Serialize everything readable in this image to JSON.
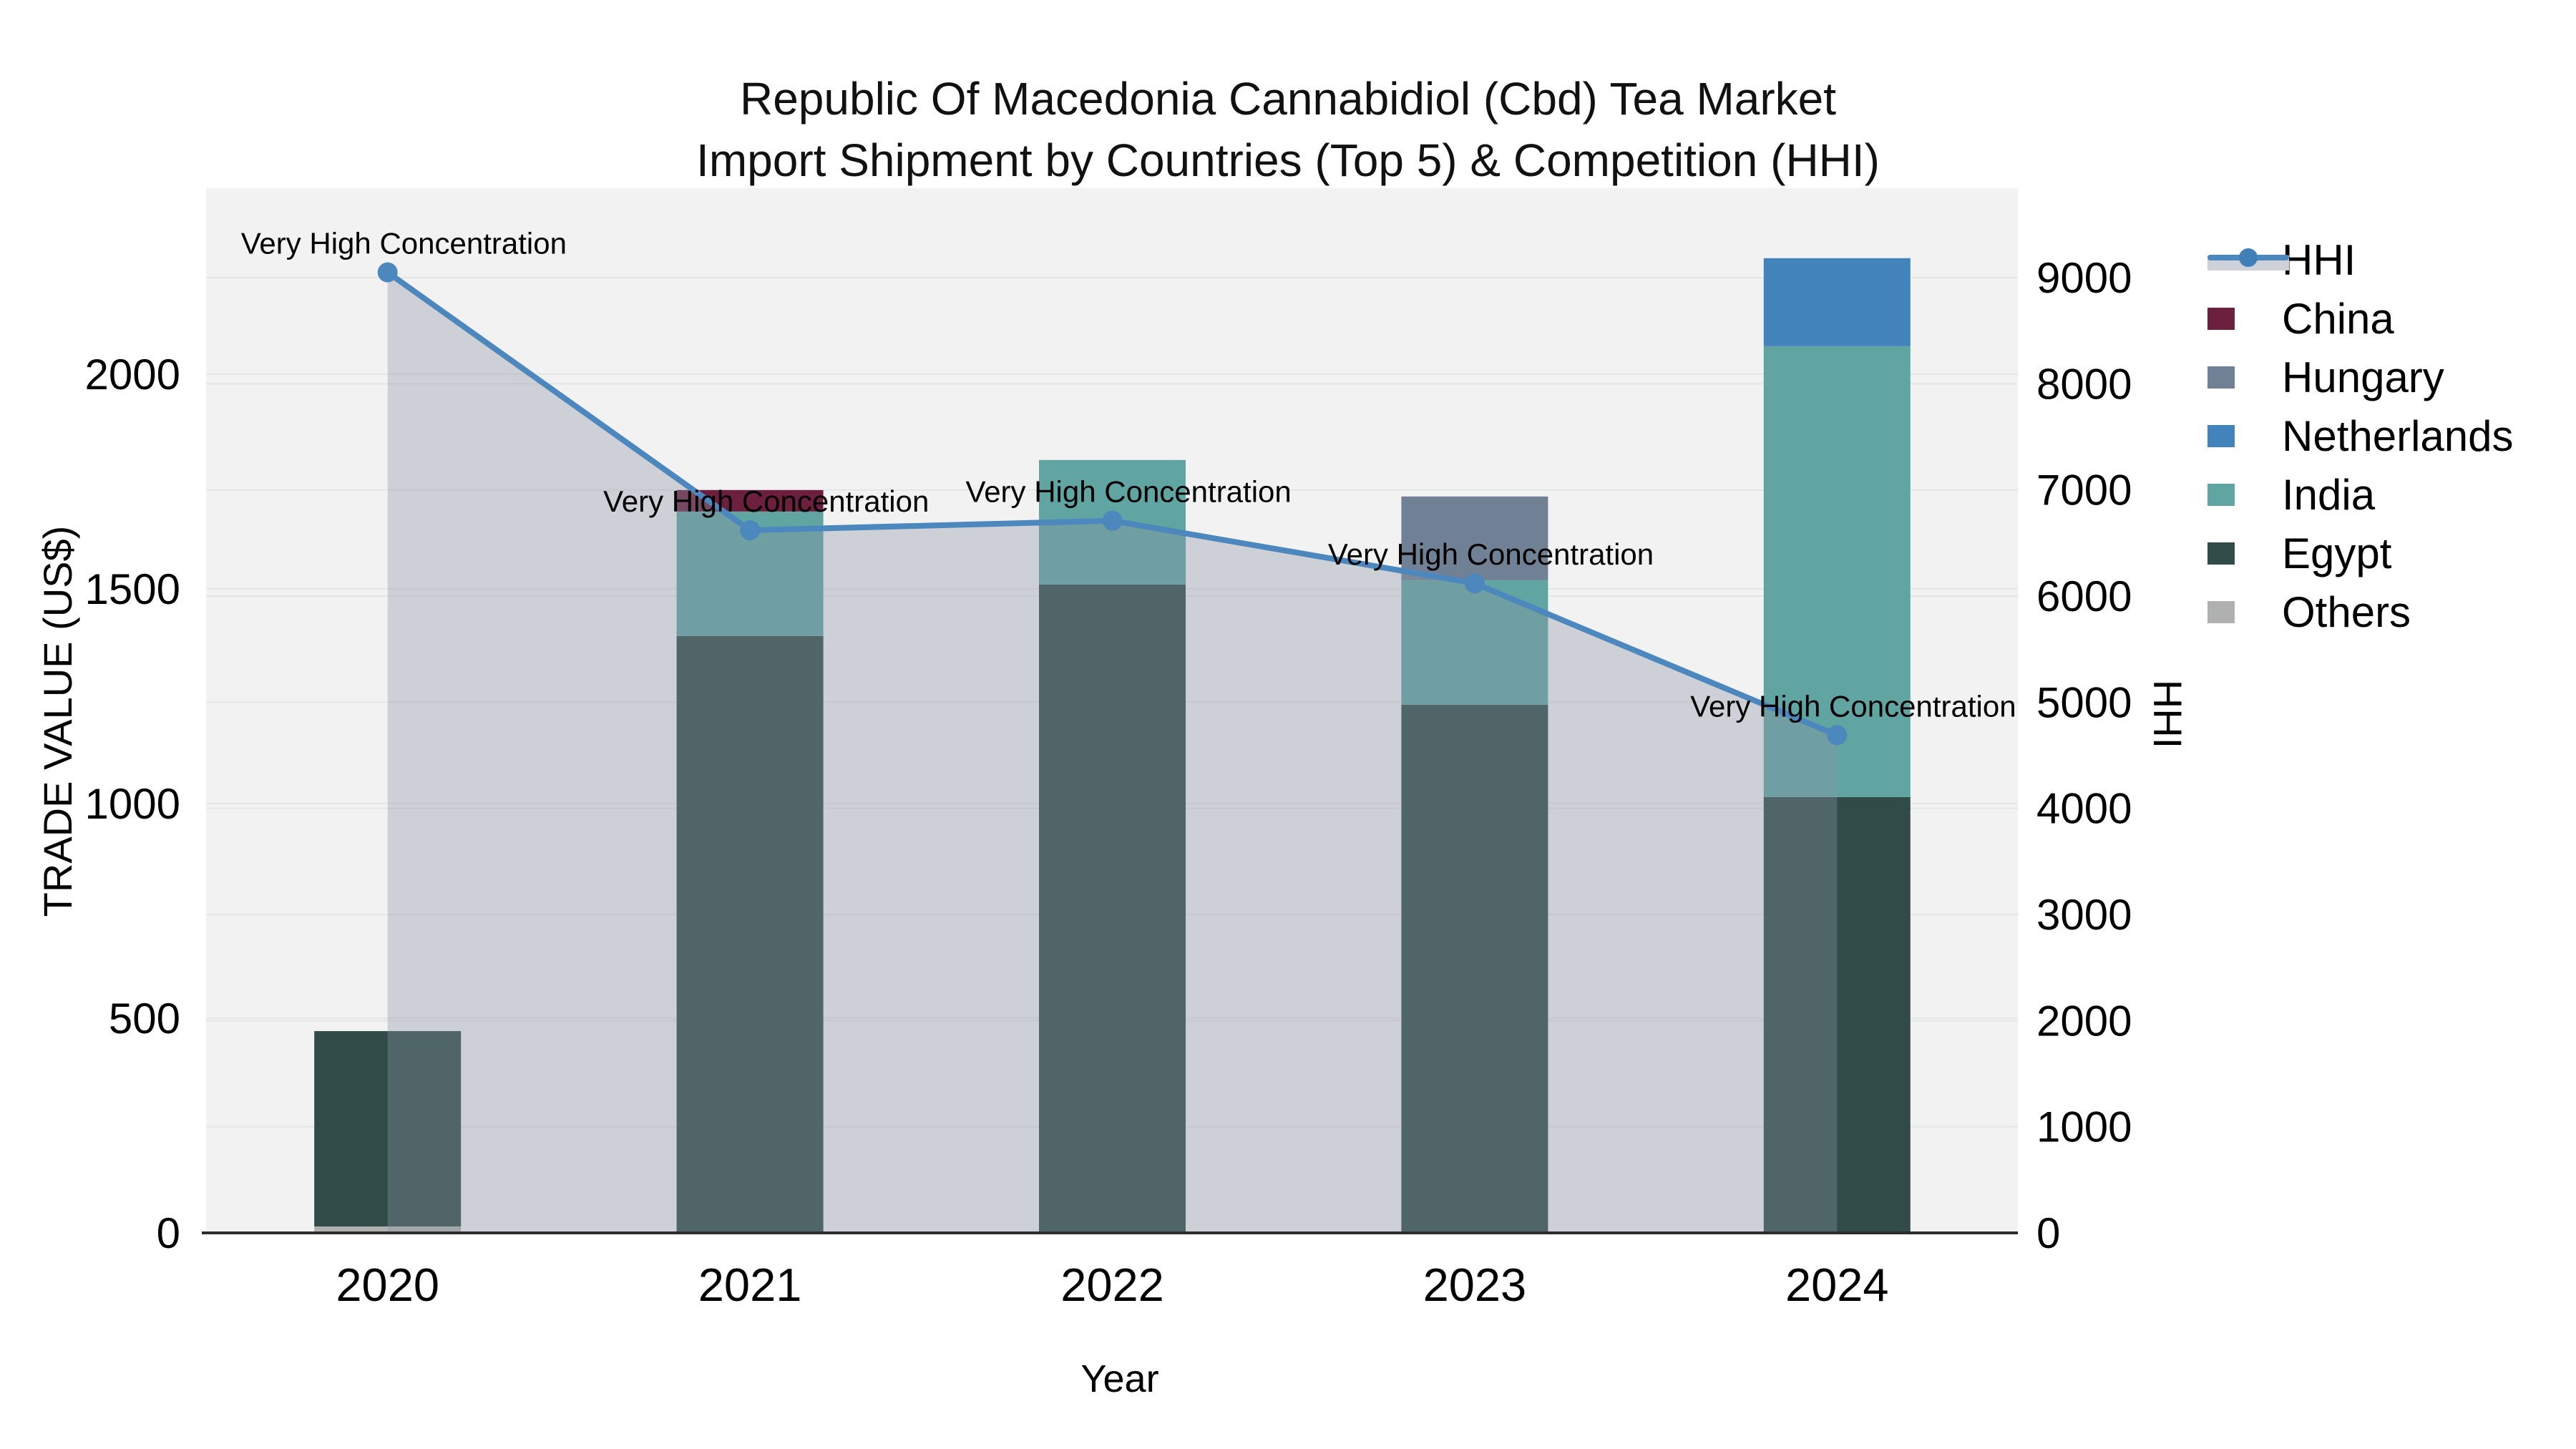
{
  "title": {
    "line1": "Republic Of Macedonia Cannabidiol (Cbd) Tea Market",
    "line2": "Import Shipment by Countries (Top 5) & Competition (HHI)"
  },
  "left_axis": {
    "label": "TRADE VALUE (US$)",
    "tick_values": [
      0,
      500,
      1000,
      1500,
      2000
    ]
  },
  "right_axis": {
    "label": "HHI",
    "tick_values": [
      0,
      1000,
      2000,
      3000,
      4000,
      5000,
      6000,
      7000,
      8000,
      9000
    ]
  },
  "x_axis": {
    "label": "Year"
  },
  "legend": {
    "items": [
      {
        "label": "HHI",
        "type": "line"
      },
      {
        "label": "China",
        "type": "patch"
      },
      {
        "label": "Hungary",
        "type": "patch"
      },
      {
        "label": "Netherlands",
        "type": "patch"
      },
      {
        "label": "India",
        "type": "patch"
      },
      {
        "label": "Egypt",
        "type": "patch"
      },
      {
        "label": "Others",
        "type": "patch"
      }
    ]
  },
  "colors": {
    "hhi_line": "#4c87bd",
    "area_fill": "rgba(138,148,166,0.35)",
    "plot_background": "#f2f2f2",
    "gridline": "#e4e6e6",
    "axis_line": "#2d2d2d",
    "China": "#6d1f3e",
    "Hungary": "#708195",
    "Netherlands": "#4283bb",
    "India": "#61a5a2",
    "Egypt": "#314c48",
    "Others": "#afb1b0"
  },
  "chart_data": {
    "type": "bar+line",
    "title": "Republic Of Macedonia Cannabidiol (Cbd) Tea Market Import Shipment by Countries (Top 5) & Competition (HHI)",
    "categories": [
      "2020",
      "2021",
      "2022",
      "2023",
      "2024"
    ],
    "xlabel": "Year",
    "ylabel_left": "TRADE VALUE (US$)",
    "ylabel_right": "HHI",
    "left_ylim": [
      0,
      2433
    ],
    "right_ylim": [
      0,
      9843
    ],
    "grid": true,
    "legend_position": "right",
    "series": [
      {
        "name": "Others",
        "values": [
          15,
          0,
          0,
          0,
          0
        ]
      },
      {
        "name": "Egypt",
        "values": [
          455,
          1390,
          1510,
          1230,
          1015
        ]
      },
      {
        "name": "India",
        "values": [
          0,
          290,
          290,
          290,
          1050
        ]
      },
      {
        "name": "Netherlands",
        "values": [
          0,
          0,
          0,
          0,
          205
        ]
      },
      {
        "name": "Hungary",
        "values": [
          0,
          0,
          0,
          195,
          0
        ]
      },
      {
        "name": "China",
        "values": [
          0,
          50,
          0,
          0,
          0
        ]
      }
    ],
    "bar_totals": [
      470,
      1730,
      1800,
      1715,
      2270
    ],
    "line_series": {
      "name": "HHI",
      "values": [
        9050,
        6620,
        6710,
        6120,
        4690
      ]
    },
    "annotations": [
      {
        "category": "2020",
        "text": "Very High Concentration"
      },
      {
        "category": "2021",
        "text": "Very High Concentration"
      },
      {
        "category": "2022",
        "text": "Very High Concentration"
      },
      {
        "category": "2023",
        "text": "Very High Concentration"
      },
      {
        "category": "2024",
        "text": "Very High Concentration"
      }
    ]
  }
}
